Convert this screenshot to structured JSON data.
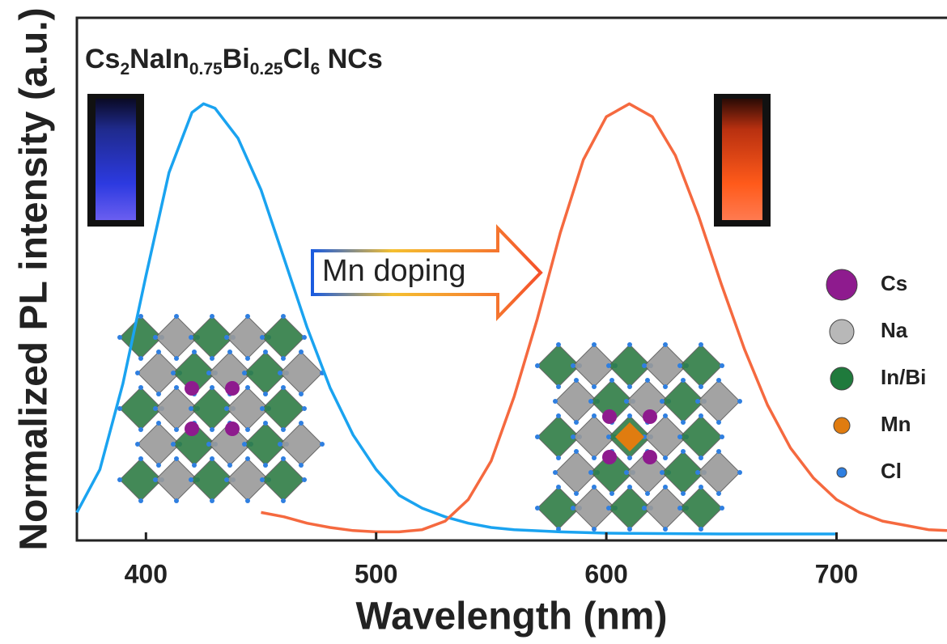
{
  "chart_data": {
    "type": "line",
    "title_segments": [
      {
        "text": "Cs",
        "subscript": false
      },
      {
        "text": "2",
        "subscript": true
      },
      {
        "text": "NaIn",
        "subscript": false
      },
      {
        "text": "0.75",
        "subscript": true
      },
      {
        "text": "Bi",
        "subscript": false
      },
      {
        "text": "0.25",
        "subscript": true
      },
      {
        "text": "Cl",
        "subscript": false
      },
      {
        "text": "6",
        "subscript": true
      },
      {
        "text": " NCs",
        "subscript": false
      }
    ],
    "x_label": "Wavelength (nm)",
    "y_label": "Normalized PL intensity (a.u.)",
    "annotation": "Mn doping",
    "xlim": [
      370,
      748
    ],
    "xticks": [
      400,
      500,
      600,
      700
    ],
    "ylim": [
      -0.015,
      1.2
    ],
    "series": [
      {
        "color": "#1aa3f0",
        "x": [
          370,
          380,
          390,
          400,
          410,
          420,
          425,
          430,
          440,
          450,
          460,
          470,
          480,
          490,
          500,
          510,
          520,
          530,
          540,
          550,
          560,
          580,
          600,
          650,
          700
        ],
        "values": [
          0.05,
          0.15,
          0.35,
          0.6,
          0.84,
          0.98,
          1.0,
          0.99,
          0.92,
          0.8,
          0.64,
          0.48,
          0.34,
          0.23,
          0.15,
          0.09,
          0.06,
          0.04,
          0.025,
          0.015,
          0.01,
          0.005,
          0.002,
          0.0,
          0.0
        ]
      },
      {
        "color": "#f5693f",
        "x": [
          450,
          460,
          470,
          480,
          490,
          500,
          510,
          520,
          530,
          540,
          550,
          560,
          570,
          580,
          590,
          600,
          610,
          620,
          630,
          640,
          650,
          660,
          670,
          680,
          690,
          700,
          710,
          720,
          730,
          740,
          748
        ],
        "values": [
          0.05,
          0.04,
          0.025,
          0.015,
          0.008,
          0.005,
          0.005,
          0.01,
          0.03,
          0.08,
          0.17,
          0.32,
          0.5,
          0.7,
          0.87,
          0.97,
          1.0,
          0.97,
          0.88,
          0.74,
          0.58,
          0.43,
          0.3,
          0.2,
          0.13,
          0.08,
          0.05,
          0.03,
          0.02,
          0.01,
          0.008
        ]
      }
    ],
    "atom_legend": [
      {
        "label": "Cs",
        "color": "#8e1b8e"
      },
      {
        "label": "Na",
        "color": "#b8b8b8"
      },
      {
        "label": "In/Bi",
        "color": "#1f7a3c"
      },
      {
        "label": "Mn",
        "color": "#e07c10"
      },
      {
        "label": "Cl",
        "color": "#2f7fe0"
      }
    ]
  }
}
